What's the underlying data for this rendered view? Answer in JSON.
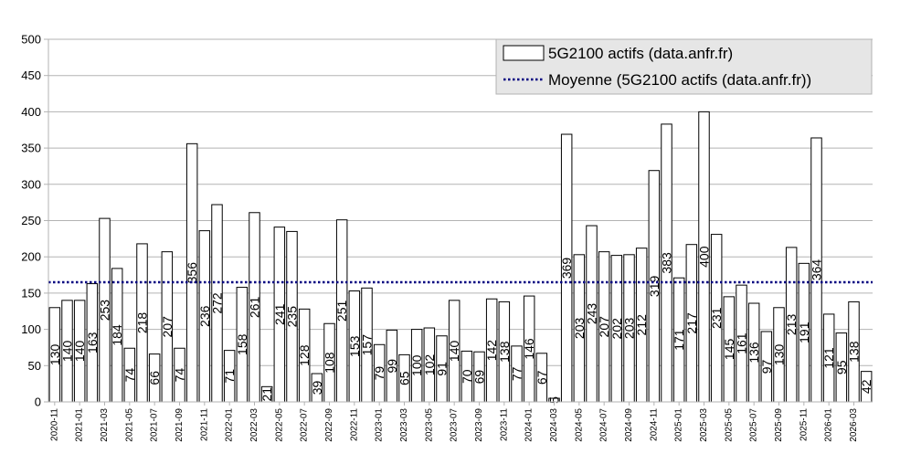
{
  "chart_data": {
    "type": "bar",
    "title": "",
    "xlabel": "",
    "ylabel": "",
    "ylim": [
      0,
      500
    ],
    "yticks": [
      0,
      50,
      100,
      150,
      200,
      250,
      300,
      350,
      400,
      450,
      500
    ],
    "grid": true,
    "legend_position": "top-right",
    "series": [
      {
        "name": "5G2100 actifs (data.anfr.fr)",
        "values": [
          130,
          140,
          140,
          163,
          253,
          184,
          74,
          218,
          66,
          207,
          74,
          356,
          236,
          272,
          71,
          158,
          261,
          21,
          241,
          235,
          128,
          39,
          108,
          251,
          153,
          157,
          79,
          99,
          65,
          100,
          102,
          91,
          140,
          70,
          69,
          142,
          138,
          77,
          146,
          67,
          5,
          369,
          203,
          243,
          207,
          202,
          203,
          212,
          319,
          383,
          171,
          217,
          400,
          231,
          145,
          161,
          136,
          97,
          130,
          213,
          191,
          364,
          121,
          95,
          138,
          42
        ]
      }
    ],
    "average": {
      "name": "Moyenne (5G2100 actifs (data.anfr.fr))",
      "value": 165
    },
    "x_tick_labels": [
      "2020-11",
      "2021-01",
      "2021-03",
      "2021-05",
      "2021-07",
      "2021-09",
      "2021-11",
      "2022-01",
      "2022-03",
      "2022-05",
      "2022-07",
      "2022-09",
      "2022-11",
      "2023-01",
      "2023-03",
      "2023-05",
      "2023-07",
      "2023-09",
      "2023-11",
      "2024-01",
      "2024-03",
      "2024-05",
      "2024-07",
      "2024-09",
      "2024-11",
      "2025-01",
      "2025-03",
      "2025-05",
      "2025-07",
      "2025-09",
      "2025-11",
      "2026-01",
      "2026-03"
    ],
    "colors": {
      "bar_fill": "#ffffff",
      "bar_stroke": "#000000",
      "grid": "#b3b3b3",
      "average_line": "#000080",
      "legend_bg": "#e6e6e6"
    }
  }
}
